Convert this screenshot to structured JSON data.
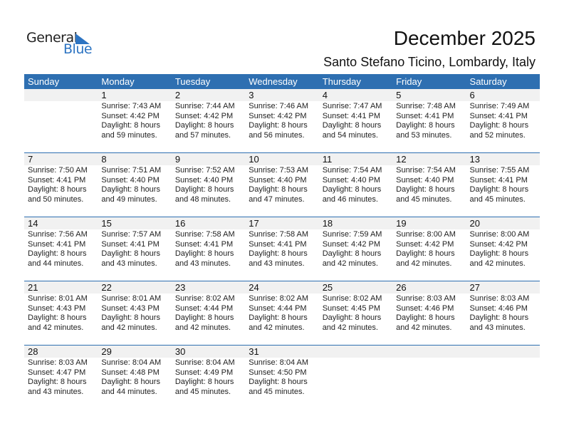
{
  "logo": {
    "general": "General",
    "blue": "Blue"
  },
  "title": "December 2025",
  "subtitle": "Santo Stefano Ticino, Lombardy, Italy",
  "colors": {
    "header": "#2e6fb1",
    "logo_blue": "#2d74c2",
    "strip": "#f1f1f1"
  },
  "weekdays": [
    "Sunday",
    "Monday",
    "Tuesday",
    "Wednesday",
    "Thursday",
    "Friday",
    "Saturday"
  ],
  "weeks": [
    [
      null,
      {
        "day": "1",
        "sunrise": "Sunrise: 7:43 AM",
        "sunset": "Sunset: 4:42 PM",
        "daylight1": "Daylight: 8 hours",
        "daylight2": "and 59 minutes."
      },
      {
        "day": "2",
        "sunrise": "Sunrise: 7:44 AM",
        "sunset": "Sunset: 4:42 PM",
        "daylight1": "Daylight: 8 hours",
        "daylight2": "and 57 minutes."
      },
      {
        "day": "3",
        "sunrise": "Sunrise: 7:46 AM",
        "sunset": "Sunset: 4:42 PM",
        "daylight1": "Daylight: 8 hours",
        "daylight2": "and 56 minutes."
      },
      {
        "day": "4",
        "sunrise": "Sunrise: 7:47 AM",
        "sunset": "Sunset: 4:41 PM",
        "daylight1": "Daylight: 8 hours",
        "daylight2": "and 54 minutes."
      },
      {
        "day": "5",
        "sunrise": "Sunrise: 7:48 AM",
        "sunset": "Sunset: 4:41 PM",
        "daylight1": "Daylight: 8 hours",
        "daylight2": "and 53 minutes."
      },
      {
        "day": "6",
        "sunrise": "Sunrise: 7:49 AM",
        "sunset": "Sunset: 4:41 PM",
        "daylight1": "Daylight: 8 hours",
        "daylight2": "and 52 minutes."
      }
    ],
    [
      {
        "day": "7",
        "sunrise": "Sunrise: 7:50 AM",
        "sunset": "Sunset: 4:41 PM",
        "daylight1": "Daylight: 8 hours",
        "daylight2": "and 50 minutes."
      },
      {
        "day": "8",
        "sunrise": "Sunrise: 7:51 AM",
        "sunset": "Sunset: 4:40 PM",
        "daylight1": "Daylight: 8 hours",
        "daylight2": "and 49 minutes."
      },
      {
        "day": "9",
        "sunrise": "Sunrise: 7:52 AM",
        "sunset": "Sunset: 4:40 PM",
        "daylight1": "Daylight: 8 hours",
        "daylight2": "and 48 minutes."
      },
      {
        "day": "10",
        "sunrise": "Sunrise: 7:53 AM",
        "sunset": "Sunset: 4:40 PM",
        "daylight1": "Daylight: 8 hours",
        "daylight2": "and 47 minutes."
      },
      {
        "day": "11",
        "sunrise": "Sunrise: 7:54 AM",
        "sunset": "Sunset: 4:40 PM",
        "daylight1": "Daylight: 8 hours",
        "daylight2": "and 46 minutes."
      },
      {
        "day": "12",
        "sunrise": "Sunrise: 7:54 AM",
        "sunset": "Sunset: 4:40 PM",
        "daylight1": "Daylight: 8 hours",
        "daylight2": "and 45 minutes."
      },
      {
        "day": "13",
        "sunrise": "Sunrise: 7:55 AM",
        "sunset": "Sunset: 4:41 PM",
        "daylight1": "Daylight: 8 hours",
        "daylight2": "and 45 minutes."
      }
    ],
    [
      {
        "day": "14",
        "sunrise": "Sunrise: 7:56 AM",
        "sunset": "Sunset: 4:41 PM",
        "daylight1": "Daylight: 8 hours",
        "daylight2": "and 44 minutes."
      },
      {
        "day": "15",
        "sunrise": "Sunrise: 7:57 AM",
        "sunset": "Sunset: 4:41 PM",
        "daylight1": "Daylight: 8 hours",
        "daylight2": "and 43 minutes."
      },
      {
        "day": "16",
        "sunrise": "Sunrise: 7:58 AM",
        "sunset": "Sunset: 4:41 PM",
        "daylight1": "Daylight: 8 hours",
        "daylight2": "and 43 minutes."
      },
      {
        "day": "17",
        "sunrise": "Sunrise: 7:58 AM",
        "sunset": "Sunset: 4:41 PM",
        "daylight1": "Daylight: 8 hours",
        "daylight2": "and 43 minutes."
      },
      {
        "day": "18",
        "sunrise": "Sunrise: 7:59 AM",
        "sunset": "Sunset: 4:42 PM",
        "daylight1": "Daylight: 8 hours",
        "daylight2": "and 42 minutes."
      },
      {
        "day": "19",
        "sunrise": "Sunrise: 8:00 AM",
        "sunset": "Sunset: 4:42 PM",
        "daylight1": "Daylight: 8 hours",
        "daylight2": "and 42 minutes."
      },
      {
        "day": "20",
        "sunrise": "Sunrise: 8:00 AM",
        "sunset": "Sunset: 4:42 PM",
        "daylight1": "Daylight: 8 hours",
        "daylight2": "and 42 minutes."
      }
    ],
    [
      {
        "day": "21",
        "sunrise": "Sunrise: 8:01 AM",
        "sunset": "Sunset: 4:43 PM",
        "daylight1": "Daylight: 8 hours",
        "daylight2": "and 42 minutes."
      },
      {
        "day": "22",
        "sunrise": "Sunrise: 8:01 AM",
        "sunset": "Sunset: 4:43 PM",
        "daylight1": "Daylight: 8 hours",
        "daylight2": "and 42 minutes."
      },
      {
        "day": "23",
        "sunrise": "Sunrise: 8:02 AM",
        "sunset": "Sunset: 4:44 PM",
        "daylight1": "Daylight: 8 hours",
        "daylight2": "and 42 minutes."
      },
      {
        "day": "24",
        "sunrise": "Sunrise: 8:02 AM",
        "sunset": "Sunset: 4:44 PM",
        "daylight1": "Daylight: 8 hours",
        "daylight2": "and 42 minutes."
      },
      {
        "day": "25",
        "sunrise": "Sunrise: 8:02 AM",
        "sunset": "Sunset: 4:45 PM",
        "daylight1": "Daylight: 8 hours",
        "daylight2": "and 42 minutes."
      },
      {
        "day": "26",
        "sunrise": "Sunrise: 8:03 AM",
        "sunset": "Sunset: 4:46 PM",
        "daylight1": "Daylight: 8 hours",
        "daylight2": "and 42 minutes."
      },
      {
        "day": "27",
        "sunrise": "Sunrise: 8:03 AM",
        "sunset": "Sunset: 4:46 PM",
        "daylight1": "Daylight: 8 hours",
        "daylight2": "and 43 minutes."
      }
    ],
    [
      {
        "day": "28",
        "sunrise": "Sunrise: 8:03 AM",
        "sunset": "Sunset: 4:47 PM",
        "daylight1": "Daylight: 8 hours",
        "daylight2": "and 43 minutes."
      },
      {
        "day": "29",
        "sunrise": "Sunrise: 8:04 AM",
        "sunset": "Sunset: 4:48 PM",
        "daylight1": "Daylight: 8 hours",
        "daylight2": "and 44 minutes."
      },
      {
        "day": "30",
        "sunrise": "Sunrise: 8:04 AM",
        "sunset": "Sunset: 4:49 PM",
        "daylight1": "Daylight: 8 hours",
        "daylight2": "and 45 minutes."
      },
      {
        "day": "31",
        "sunrise": "Sunrise: 8:04 AM",
        "sunset": "Sunset: 4:50 PM",
        "daylight1": "Daylight: 8 hours",
        "daylight2": "and 45 minutes."
      },
      null,
      null,
      null
    ]
  ]
}
